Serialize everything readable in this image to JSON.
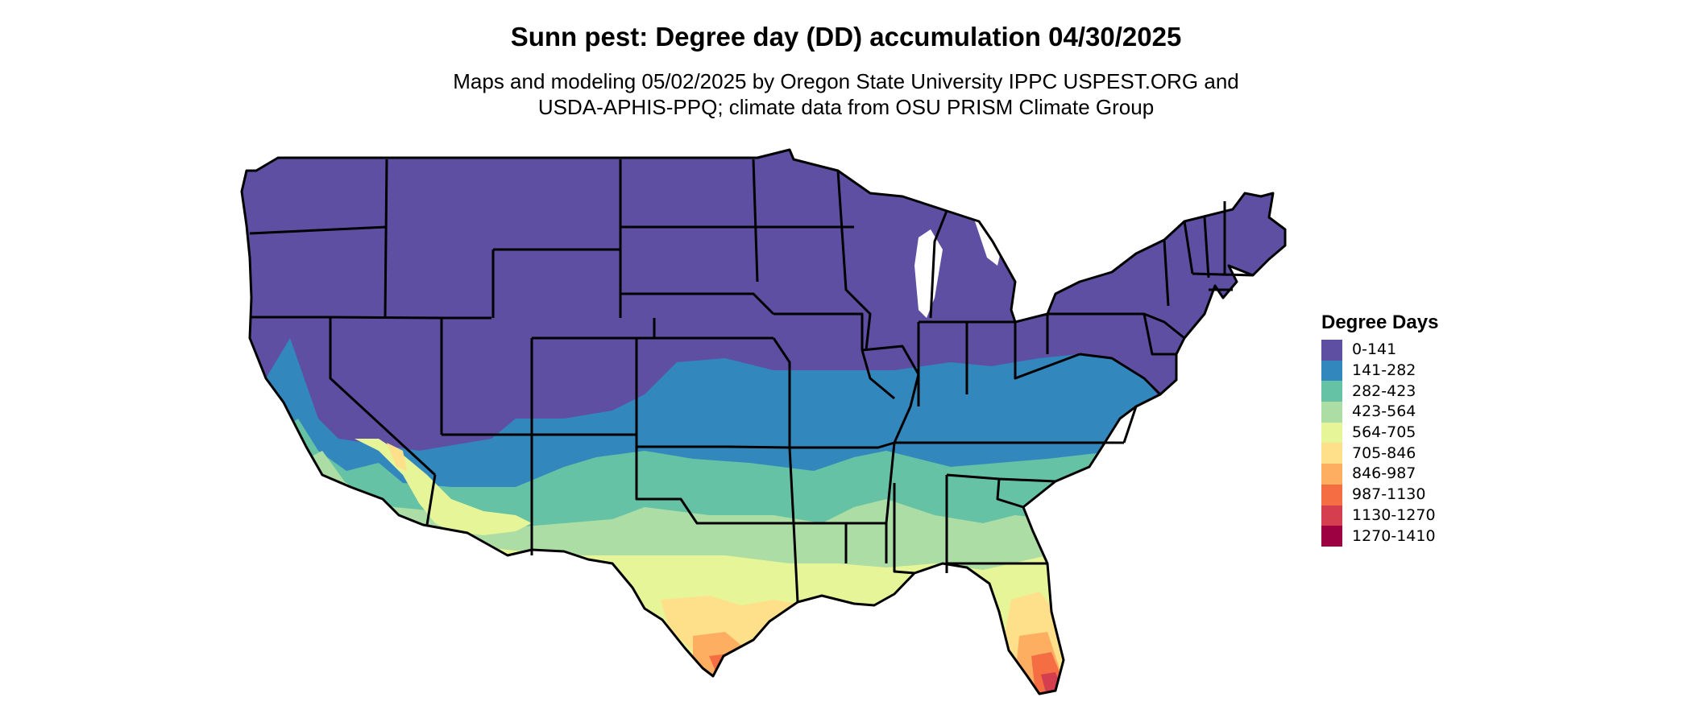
{
  "header": {
    "title": "Sunn pest: Degree day (DD) accumulation 04/30/2025",
    "subtitle_line1": "Maps and modeling 05/02/2025 by Oregon State University IPPC USPEST.ORG and",
    "subtitle_line2": "USDA-APHIS-PPQ; climate data from OSU PRISM Climate Group"
  },
  "legend": {
    "title": "Degree Days",
    "items": [
      {
        "label": "0-141",
        "color": "#5E4FA2"
      },
      {
        "label": "141-282",
        "color": "#3288BD"
      },
      {
        "label": "282-423",
        "color": "#66C2A5"
      },
      {
        "label": "423-564",
        "color": "#ABDDA4"
      },
      {
        "label": "564-705",
        "color": "#E6F598"
      },
      {
        "label": "705-846",
        "color": "#FEE08B"
      },
      {
        "label": "846-987",
        "color": "#FDAE61"
      },
      {
        "label": "987-1130",
        "color": "#F46D43"
      },
      {
        "label": "1130-1270",
        "color": "#D53E4F"
      },
      {
        "label": "1270-1410",
        "color": "#9E0142"
      }
    ]
  },
  "map": {
    "region": "contiguous-united-states",
    "boundary_color": "#000000"
  }
}
